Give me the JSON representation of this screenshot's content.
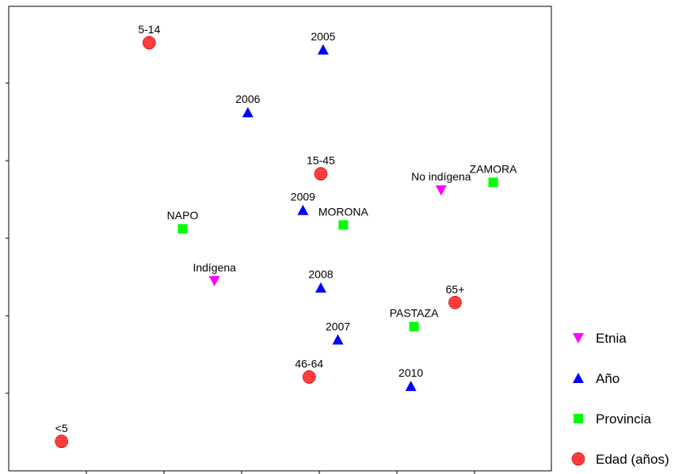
{
  "chart_data": {
    "type": "scatter",
    "title": "",
    "xlabel": "",
    "ylabel": "",
    "xlim": [
      0,
      7
    ],
    "ylim": [
      0,
      6
    ],
    "grid": false,
    "legend_position": "right",
    "series": [
      {
        "name": "Etnia",
        "marker": "triangle-down",
        "color": "#ff00ff",
        "points": [
          {
            "label": "No indígena",
            "x": 5.57,
            "y": 3.62
          },
          {
            "label": "Indígena",
            "x": 2.65,
            "y": 2.45
          }
        ]
      },
      {
        "name": "Año",
        "marker": "triangle-up",
        "color": "#0000ff",
        "points": [
          {
            "label": "2005",
            "x": 4.05,
            "y": 5.43
          },
          {
            "label": "2006",
            "x": 3.08,
            "y": 4.62
          },
          {
            "label": "2009",
            "x": 3.79,
            "y": 3.36
          },
          {
            "label": "2008",
            "x": 4.02,
            "y": 2.36
          },
          {
            "label": "2007",
            "x": 4.24,
            "y": 1.69
          },
          {
            "label": "2010",
            "x": 5.18,
            "y": 1.09
          }
        ]
      },
      {
        "name": "Provincia",
        "marker": "square",
        "color": "#00ff00",
        "points": [
          {
            "label": "ZAMORA",
            "x": 6.24,
            "y": 3.72
          },
          {
            "label": "NAPO",
            "x": 2.24,
            "y": 3.12
          },
          {
            "label": "MORONA",
            "x": 4.31,
            "y": 3.17
          },
          {
            "label": "PASTAZA",
            "x": 5.22,
            "y": 1.86
          }
        ]
      },
      {
        "name": "Edad (años)",
        "marker": "circle",
        "color": "#ff2020",
        "points": [
          {
            "label": "5-14",
            "x": 1.81,
            "y": 5.52
          },
          {
            "label": "15-45",
            "x": 4.02,
            "y": 3.83
          },
          {
            "label": "65+",
            "x": 5.75,
            "y": 2.17
          },
          {
            "label": "46-64",
            "x": 3.87,
            "y": 1.21
          },
          {
            "label": "<5",
            "x": 0.68,
            "y": 0.38
          }
        ]
      }
    ]
  }
}
